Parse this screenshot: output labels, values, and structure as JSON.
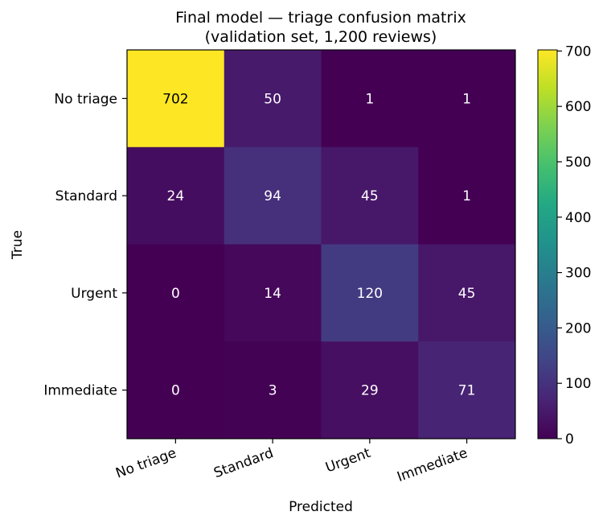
{
  "chart_data": {
    "type": "heatmap",
    "title_line1": "Final model — triage confusion matrix",
    "title_line2": "(validation set, 1,200 reviews)",
    "xlabel": "Predicted",
    "ylabel": "True",
    "x_categories": [
      "No triage",
      "Standard",
      "Urgent",
      "Immediate"
    ],
    "y_categories": [
      "No triage",
      "Standard",
      "Urgent",
      "Immediate"
    ],
    "values": [
      [
        702,
        50,
        1,
        1
      ],
      [
        24,
        94,
        45,
        1
      ],
      [
        0,
        14,
        120,
        45
      ],
      [
        0,
        3,
        29,
        71
      ]
    ],
    "colormap": "viridis",
    "color_range": [
      0,
      702
    ],
    "colorbar_ticks": [
      "0",
      "100",
      "200",
      "300",
      "400",
      "500",
      "600",
      "700"
    ],
    "dark_text_color": "#000000",
    "light_text_color": "#ffffff",
    "grid": false
  }
}
